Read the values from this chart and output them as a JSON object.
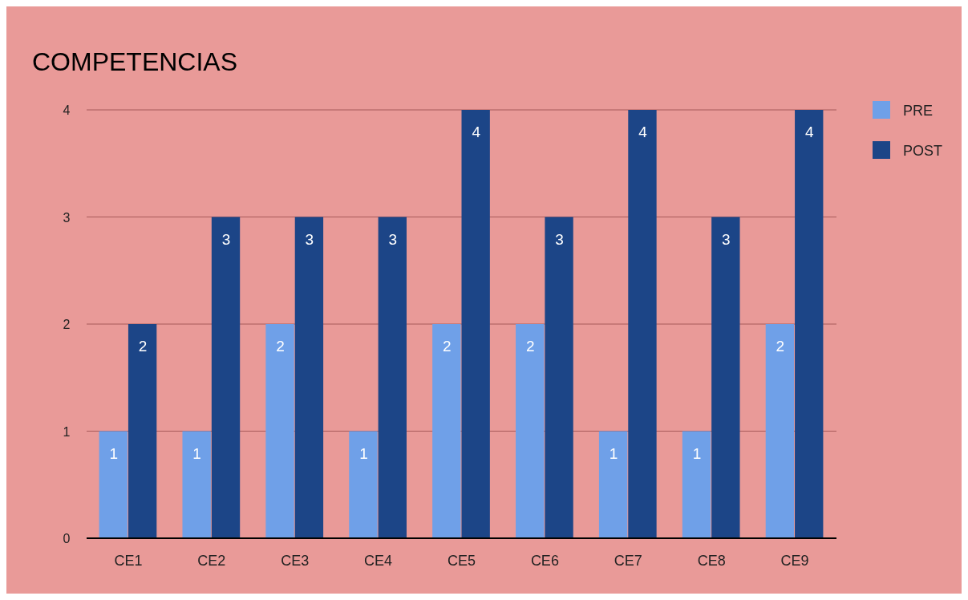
{
  "chart_data": {
    "type": "bar",
    "title": "COMPETENCIAS",
    "categories": [
      "CE1",
      "CE2",
      "CE3",
      "CE4",
      "CE5",
      "CE6",
      "CE7",
      "CE8",
      "CE9"
    ],
    "series": [
      {
        "name": "PRE",
        "color": "#6fa0e8",
        "values": [
          1,
          1,
          2,
          1,
          2,
          2,
          1,
          1,
          2
        ]
      },
      {
        "name": "POST",
        "color": "#1c4587",
        "values": [
          2,
          3,
          3,
          3,
          4,
          3,
          4,
          3,
          4
        ]
      }
    ],
    "ylim": [
      0,
      4
    ],
    "yticks": [
      0,
      1,
      2,
      3,
      4
    ],
    "grid": "y",
    "legend": "right",
    "data_labels": true
  }
}
